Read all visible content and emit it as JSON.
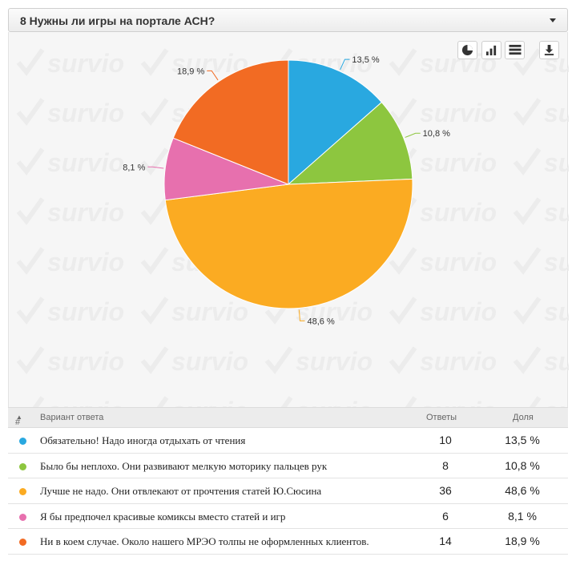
{
  "question": {
    "title": "8 Нужны ли игры на портале АСН?"
  },
  "watermark": {
    "text": "survio"
  },
  "toolbar": {
    "pie_icon": "pie-chart-icon",
    "bar_icon": "bar-chart-icon",
    "table_icon": "table-icon",
    "download_icon": "download-icon"
  },
  "chart_data": {
    "type": "pie",
    "labels": [
      "Обязательно! Надо иногда отдыхать от чтения",
      "Было бы неплохо. Они развивают мелкую моторику пальцев рук",
      "Лучше не надо. Они отвлекают от прочтения статей Ю.Сюсина",
      "Я бы предпочел красивые комиксы вместо статей и игр",
      "Ни в коем случае. Около нашего МРЭО толпы не оформленных клиентов."
    ],
    "values": [
      13.5,
      10.8,
      48.6,
      8.1,
      18.9
    ],
    "data_labels": [
      "13,5 %",
      "10,8 %",
      "48,6 %",
      "8,1 %",
      "18,9 %"
    ],
    "colors": [
      "#29a8e0",
      "#8dc63f",
      "#fbab22",
      "#e770ae",
      "#f26b23"
    ]
  },
  "table": {
    "headers": {
      "num": "#",
      "answer": "Вариант ответа",
      "count": "Ответы",
      "share": "Доля"
    },
    "rows": [
      {
        "answer": "Обязательно! Надо иногда отдыхать от чтения",
        "count": "10",
        "share": "13,5 %",
        "color": "#29a8e0"
      },
      {
        "answer": "Было бы неплохо. Они развивают мелкую моторику пальцев рук",
        "count": "8",
        "share": "10,8 %",
        "color": "#8dc63f"
      },
      {
        "answer": "Лучше не надо. Они отвлекают от прочтения статей Ю.Сюсина",
        "count": "36",
        "share": "48,6 %",
        "color": "#fbab22"
      },
      {
        "answer": "Я бы предпочел красивые комиксы вместо статей и игр",
        "count": "6",
        "share": "8,1 %",
        "color": "#e770ae"
      },
      {
        "answer": "Ни в коем случае. Около нашего МРЭО толпы не оформленных клиентов.",
        "count": "14",
        "share": "18,9 %",
        "color": "#f26b23"
      }
    ]
  }
}
